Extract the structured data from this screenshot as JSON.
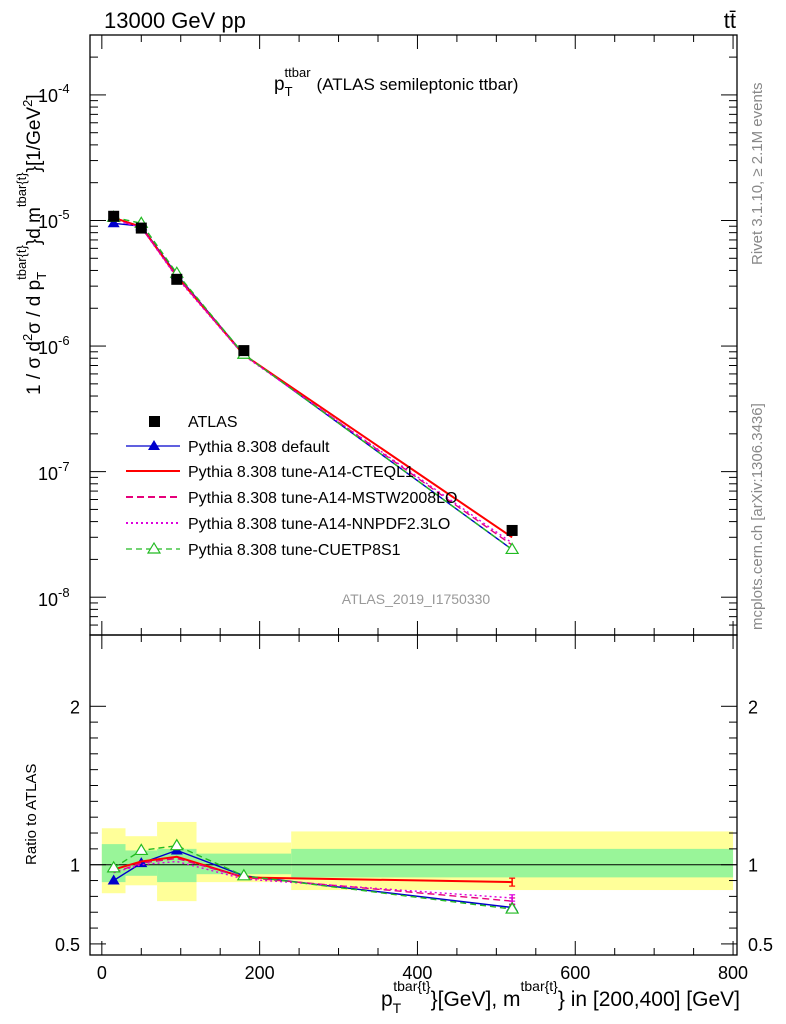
{
  "header": {
    "energy_label": "13000 GeV pp",
    "process_label": "tt̄"
  },
  "side_labels": {
    "rivet": "Rivet 3.1.10, ≥ 2.1M events",
    "mcplots": "mcplots.cern.ch [arXiv:1306.3436]"
  },
  "chart_data": [
    {
      "type": "line",
      "panel": "main",
      "title_main": "p",
      "title_sub": "T",
      "title_sup": "ttbar",
      "title_rest": "(ATLAS semileptonic ttbar)",
      "ylabel": "1 / σ d²σ / d p_T^{tbar{t}}d m^{tbar{t}}}[1/GeV²]",
      "ylabel_prefix": "1 / σ d",
      "ylabel_sq": "2",
      "ylabel_mid": "σ /  d p",
      "ylabel_sub1": "T",
      "ylabel_sup1": "tbar{t}",
      "ylabel_dm": "}d m",
      "ylabel_sup2": "tbar{t}",
      "ylabel_unit": "}[1/GeV",
      "ylabel_unit_sq": "2",
      "ylabel_close": "]",
      "yscale": "log",
      "ylim": [
        5e-09,
        0.0003
      ],
      "xlim": [
        -15,
        805
      ],
      "ytick_labels": [
        {
          "mant": "10",
          "exp": "-8"
        },
        {
          "mant": "10",
          "exp": "-7"
        },
        {
          "mant": "10",
          "exp": "-6"
        },
        {
          "mant": "10",
          "exp": "-5"
        },
        {
          "mant": "10",
          "exp": "-4"
        }
      ],
      "watermark": "ATLAS_2019_I1750330",
      "legend_position": "center-left",
      "data": {
        "name": "ATLAS",
        "x": [
          15,
          50,
          95,
          180,
          520
        ],
        "y": [
          1.08e-05,
          8.7e-06,
          3.4e-06,
          9.2e-07,
          3.4e-08
        ]
      },
      "series": [
        {
          "name": "Pythia 8.308 default",
          "color": "#0000cc",
          "dash": "",
          "marker": "triangle-filled",
          "x": [
            15,
            50,
            95,
            180,
            520
          ],
          "y": [
            9.5e-06,
            9e-06,
            3.7e-06,
            8.6e-07,
            2.4e-08
          ]
        },
        {
          "name": "Pythia 8.308 tune-A14-CTEQL1",
          "color": "#ff0000",
          "dash": "",
          "marker": "none",
          "x": [
            15,
            50,
            95,
            180,
            520
          ],
          "y": [
            1.05e-05,
            8.9e-06,
            3.6e-06,
            8.5e-07,
            3e-08
          ]
        },
        {
          "name": "Pythia 8.308 tune-A14-MSTW2008LO",
          "color": "#e6007a",
          "dash": "7,4",
          "marker": "none",
          "x": [
            15,
            50,
            95,
            180,
            520
          ],
          "y": [
            1.02e-05,
            8.8e-06,
            3.6e-06,
            8.5e-07,
            2.6e-08
          ]
        },
        {
          "name": "Pythia 8.308 tune-A14-NNPDF2.3LO",
          "color": "#dd00dd",
          "dash": "2,3",
          "marker": "none",
          "x": [
            15,
            50,
            95,
            180,
            520
          ],
          "y": [
            1.01e-05,
            8.8e-06,
            3.5e-06,
            8.4e-07,
            2.7e-08
          ]
        },
        {
          "name": "Pythia 8.308 tune-CUETP8S1",
          "color": "#22bb22",
          "dash": "6,4",
          "marker": "triangle-open",
          "x": [
            15,
            50,
            95,
            180,
            520
          ],
          "y": [
            1.06e-05,
            9.5e-06,
            3.8e-06,
            8.6e-07,
            2.4e-08
          ]
        }
      ]
    },
    {
      "type": "line",
      "panel": "ratio",
      "ylabel": "Ratio to ATLAS",
      "ylim": [
        0.43,
        2.45
      ],
      "xlim": [
        -15,
        805
      ],
      "xticks": [
        0,
        200,
        400,
        600,
        800
      ],
      "xtick_labels": [
        "0",
        "200",
        "400",
        "600",
        "800"
      ],
      "yticks": [
        0.5,
        1,
        2
      ],
      "ytick_labels": [
        "0.5",
        "1",
        "2"
      ],
      "xlabel": "p_T^{tbar{t}}[GeV], m^{tbar{t}} in [200,400] [GeV]",
      "xlabel_p": "p",
      "xlabel_sub": "T",
      "xlabel_sup1": "tbar{t}",
      "xlabel_mid": "}[GeV], m",
      "xlabel_sup2": "tbar{t}",
      "xlabel_end": "} in [200,400] [GeV]",
      "bands": [
        {
          "x0": 0,
          "x1": 30,
          "inner": [
            0.89,
            1.13
          ],
          "outer": [
            0.82,
            1.23
          ]
        },
        {
          "x0": 30,
          "x1": 70,
          "inner": [
            0.93,
            1.09
          ],
          "outer": [
            0.87,
            1.18
          ]
        },
        {
          "x0": 70,
          "x1": 120,
          "inner": [
            0.89,
            1.1
          ],
          "outer": [
            0.77,
            1.27
          ]
        },
        {
          "x0": 120,
          "x1": 240,
          "inner": [
            0.94,
            1.07
          ],
          "outer": [
            0.89,
            1.14
          ]
        },
        {
          "x0": 240,
          "x1": 800,
          "inner": [
            0.92,
            1.1
          ],
          "outer": [
            0.84,
            1.21
          ]
        }
      ],
      "series": [
        {
          "name": "Pythia 8.308 default",
          "x": [
            15,
            50,
            95,
            180,
            520
          ],
          "y": [
            0.9,
            1.01,
            1.09,
            0.93,
            0.73
          ],
          "yerr": [
            0,
            0,
            0,
            0,
            0.02
          ]
        },
        {
          "name": "Pythia 8.308 tune-A14-CTEQL1",
          "x": [
            15,
            50,
            95,
            180,
            520
          ],
          "y": [
            0.97,
            1.02,
            1.05,
            0.92,
            0.89
          ],
          "yerr": [
            0,
            0,
            0,
            0,
            0.025
          ]
        },
        {
          "name": "Pythia 8.308 tune-A14-MSTW2008LO",
          "x": [
            15,
            50,
            95,
            180,
            520
          ],
          "y": [
            0.95,
            1.01,
            1.04,
            0.92,
            0.77
          ],
          "yerr": [
            0,
            0,
            0,
            0,
            0.02
          ]
        },
        {
          "name": "Pythia 8.308 tune-A14-NNPDF2.3LO",
          "x": [
            15,
            50,
            95,
            180,
            520
          ],
          "y": [
            0.95,
            1.0,
            1.02,
            0.91,
            0.79
          ],
          "yerr": [
            0,
            0,
            0,
            0,
            0.02
          ]
        },
        {
          "name": "Pythia 8.308 tune-CUETP8S1",
          "x": [
            15,
            50,
            95,
            180,
            520
          ],
          "y": [
            0.98,
            1.09,
            1.12,
            0.93,
            0.72
          ],
          "yerr": [
            0,
            0,
            0,
            0,
            0.02
          ]
        }
      ]
    }
  ]
}
